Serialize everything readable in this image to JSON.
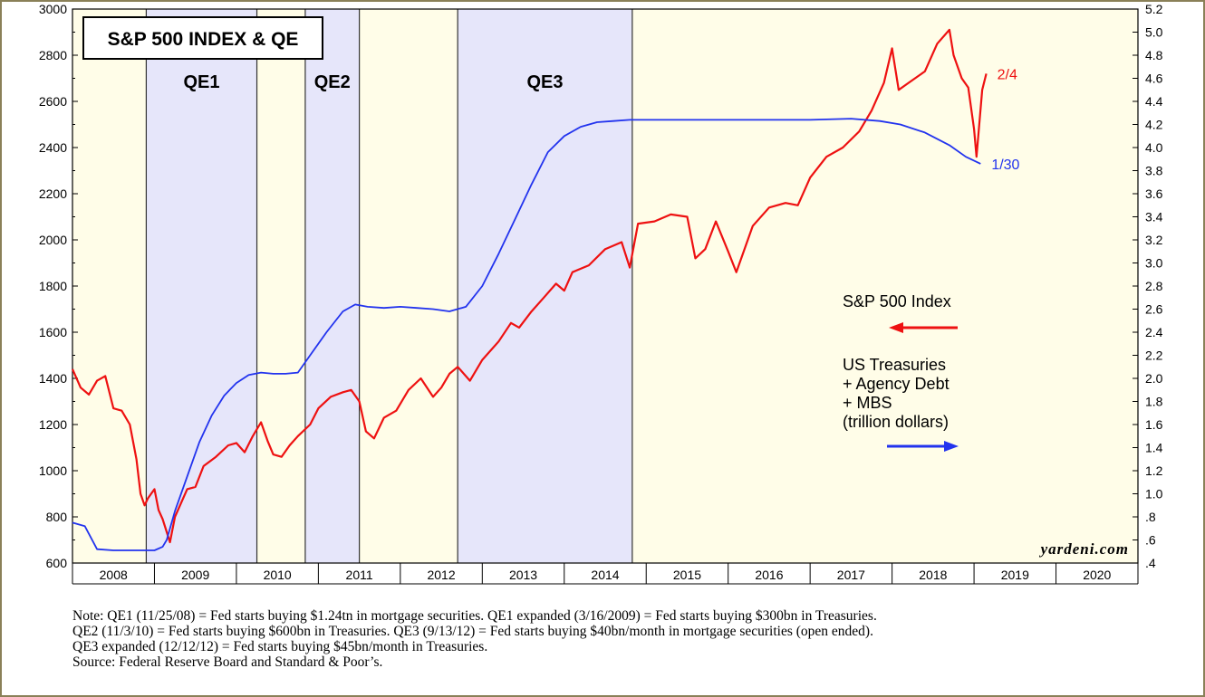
{
  "chart_data": {
    "type": "line",
    "title": "S&P 500 INDEX & QE",
    "x_categories": [
      "2008",
      "2009",
      "2010",
      "2011",
      "2012",
      "2013",
      "2014",
      "2015",
      "2016",
      "2017",
      "2018",
      "2019",
      "2020"
    ],
    "left_axis": {
      "ylim": [
        600,
        3000
      ],
      "ticks": [
        "600",
        "800",
        "1000",
        "1200",
        "1400",
        "1600",
        "1800",
        "2000",
        "2200",
        "2400",
        "2600",
        "2800",
        "3000"
      ]
    },
    "right_axis": {
      "ylim": [
        0.4,
        5.2
      ],
      "ticks": [
        ".4",
        ".6",
        ".8",
        "1.0",
        "1.2",
        "1.4",
        "1.6",
        "1.8",
        "2.0",
        "2.2",
        "2.4",
        "2.6",
        "2.8",
        "3.0",
        "3.2",
        "3.4",
        "3.6",
        "3.8",
        "4.0",
        "4.2",
        "4.4",
        "4.6",
        "4.8",
        "5.0",
        "5.2"
      ]
    },
    "shaded_periods": [
      {
        "label": "QE1",
        "start": 2008.9,
        "end": 2010.25,
        "color": "#e6e6fa"
      },
      {
        "label": "QE2",
        "start": 2010.84,
        "end": 2011.5,
        "color": "#e6e6fa"
      },
      {
        "label": "QE3",
        "start": 2012.7,
        "end": 2014.83,
        "color": "#e6e6fa"
      }
    ],
    "series": [
      {
        "name": "S&P 500 Index",
        "axis": "left",
        "color": "#ee1111",
        "end_label": "2/4",
        "points": [
          [
            2008.0,
            1440
          ],
          [
            2008.1,
            1360
          ],
          [
            2008.2,
            1330
          ],
          [
            2008.3,
            1390
          ],
          [
            2008.4,
            1410
          ],
          [
            2008.5,
            1270
          ],
          [
            2008.6,
            1260
          ],
          [
            2008.7,
            1200
          ],
          [
            2008.78,
            1050
          ],
          [
            2008.83,
            900
          ],
          [
            2008.88,
            850
          ],
          [
            2008.92,
            880
          ],
          [
            2008.96,
            900
          ],
          [
            2009.0,
            920
          ],
          [
            2009.05,
            830
          ],
          [
            2009.1,
            790
          ],
          [
            2009.19,
            690
          ],
          [
            2009.25,
            800
          ],
          [
            2009.4,
            920
          ],
          [
            2009.5,
            930
          ],
          [
            2009.6,
            1020
          ],
          [
            2009.75,
            1060
          ],
          [
            2009.9,
            1110
          ],
          [
            2010.0,
            1120
          ],
          [
            2010.1,
            1080
          ],
          [
            2010.2,
            1150
          ],
          [
            2010.3,
            1210
          ],
          [
            2010.38,
            1130
          ],
          [
            2010.45,
            1070
          ],
          [
            2010.55,
            1060
          ],
          [
            2010.65,
            1110
          ],
          [
            2010.75,
            1150
          ],
          [
            2010.9,
            1200
          ],
          [
            2011.0,
            1270
          ],
          [
            2011.15,
            1320
          ],
          [
            2011.3,
            1340
          ],
          [
            2011.4,
            1350
          ],
          [
            2011.5,
            1300
          ],
          [
            2011.58,
            1170
          ],
          [
            2011.68,
            1140
          ],
          [
            2011.8,
            1230
          ],
          [
            2011.95,
            1260
          ],
          [
            2012.1,
            1350
          ],
          [
            2012.25,
            1400
          ],
          [
            2012.4,
            1320
          ],
          [
            2012.5,
            1360
          ],
          [
            2012.6,
            1420
          ],
          [
            2012.7,
            1450
          ],
          [
            2012.85,
            1390
          ],
          [
            2013.0,
            1480
          ],
          [
            2013.2,
            1560
          ],
          [
            2013.35,
            1640
          ],
          [
            2013.45,
            1620
          ],
          [
            2013.6,
            1690
          ],
          [
            2013.75,
            1750
          ],
          [
            2013.9,
            1810
          ],
          [
            2014.0,
            1780
          ],
          [
            2014.1,
            1860
          ],
          [
            2014.3,
            1890
          ],
          [
            2014.5,
            1960
          ],
          [
            2014.7,
            1990
          ],
          [
            2014.8,
            1880
          ],
          [
            2014.9,
            2070
          ],
          [
            2015.1,
            2080
          ],
          [
            2015.3,
            2110
          ],
          [
            2015.5,
            2100
          ],
          [
            2015.6,
            1920
          ],
          [
            2015.72,
            1960
          ],
          [
            2015.85,
            2080
          ],
          [
            2016.0,
            1950
          ],
          [
            2016.1,
            1860
          ],
          [
            2016.3,
            2060
          ],
          [
            2016.5,
            2140
          ],
          [
            2016.7,
            2160
          ],
          [
            2016.85,
            2150
          ],
          [
            2017.0,
            2270
          ],
          [
            2017.2,
            2360
          ],
          [
            2017.4,
            2400
          ],
          [
            2017.6,
            2470
          ],
          [
            2017.75,
            2560
          ],
          [
            2017.9,
            2680
          ],
          [
            2018.0,
            2830
          ],
          [
            2018.08,
            2650
          ],
          [
            2018.2,
            2680
          ],
          [
            2018.4,
            2730
          ],
          [
            2018.55,
            2850
          ],
          [
            2018.7,
            2910
          ],
          [
            2018.75,
            2800
          ],
          [
            2018.85,
            2700
          ],
          [
            2018.93,
            2660
          ],
          [
            2019.0,
            2480
          ],
          [
            2019.03,
            2360
          ],
          [
            2019.1,
            2650
          ],
          [
            2019.15,
            2720
          ]
        ]
      },
      {
        "name": "US Treasuries + Agency Debt + MBS (trillion dollars)",
        "axis": "right",
        "color": "#2233ee",
        "end_label": "1/30",
        "points": [
          [
            2008.0,
            0.75
          ],
          [
            2008.15,
            0.72
          ],
          [
            2008.3,
            0.52
          ],
          [
            2008.5,
            0.51
          ],
          [
            2008.7,
            0.51
          ],
          [
            2009.0,
            0.51
          ],
          [
            2009.1,
            0.54
          ],
          [
            2009.15,
            0.6
          ],
          [
            2009.25,
            0.85
          ],
          [
            2009.4,
            1.15
          ],
          [
            2009.55,
            1.45
          ],
          [
            2009.7,
            1.68
          ],
          [
            2009.85,
            1.85
          ],
          [
            2010.0,
            1.96
          ],
          [
            2010.15,
            2.03
          ],
          [
            2010.3,
            2.05
          ],
          [
            2010.45,
            2.04
          ],
          [
            2010.6,
            2.04
          ],
          [
            2010.75,
            2.05
          ],
          [
            2010.9,
            2.2
          ],
          [
            2011.1,
            2.4
          ],
          [
            2011.3,
            2.58
          ],
          [
            2011.45,
            2.64
          ],
          [
            2011.6,
            2.62
          ],
          [
            2011.8,
            2.61
          ],
          [
            2012.0,
            2.62
          ],
          [
            2012.2,
            2.61
          ],
          [
            2012.4,
            2.6
          ],
          [
            2012.6,
            2.58
          ],
          [
            2012.8,
            2.62
          ],
          [
            2013.0,
            2.8
          ],
          [
            2013.2,
            3.08
          ],
          [
            2013.4,
            3.38
          ],
          [
            2013.6,
            3.68
          ],
          [
            2013.8,
            3.96
          ],
          [
            2014.0,
            4.1
          ],
          [
            2014.2,
            4.18
          ],
          [
            2014.4,
            4.22
          ],
          [
            2014.6,
            4.23
          ],
          [
            2014.8,
            4.24
          ],
          [
            2015.0,
            4.24
          ],
          [
            2015.5,
            4.24
          ],
          [
            2016.0,
            4.24
          ],
          [
            2016.5,
            4.24
          ],
          [
            2017.0,
            4.24
          ],
          [
            2017.5,
            4.25
          ],
          [
            2017.85,
            4.23
          ],
          [
            2018.1,
            4.2
          ],
          [
            2018.4,
            4.13
          ],
          [
            2018.7,
            4.02
          ],
          [
            2018.9,
            3.92
          ],
          [
            2019.08,
            3.86
          ]
        ]
      }
    ],
    "legend": [
      {
        "label": "S&P 500 Index",
        "direction": "left",
        "color": "#ee1111"
      },
      {
        "lines": [
          "US Treasuries",
          "+ Agency Debt",
          "+ MBS",
          "(trillion dollars)"
        ],
        "direction": "right",
        "color": "#2233ee"
      }
    ],
    "source_brand": "yardeni.com",
    "notes": [
      "Note: QE1 (11/25/08) = Fed starts buying $1.24tn in mortgage securities. QE1 expanded (3/16/2009) = Fed starts buying $300bn in Treasuries.",
      "QE2 (11/3/10) = Fed starts buying $600bn in Treasuries. QE3 (9/13/12) = Fed starts buying $40bn/month in mortgage securities (open ended).",
      "QE3 expanded (12/12/12) = Fed starts buying $45bn/month in Treasuries.",
      "Source: Federal Reserve Board and Standard & Poor’s."
    ],
    "colors": {
      "plot_background": "#fffde8",
      "shade": "#e6e6fa"
    }
  }
}
